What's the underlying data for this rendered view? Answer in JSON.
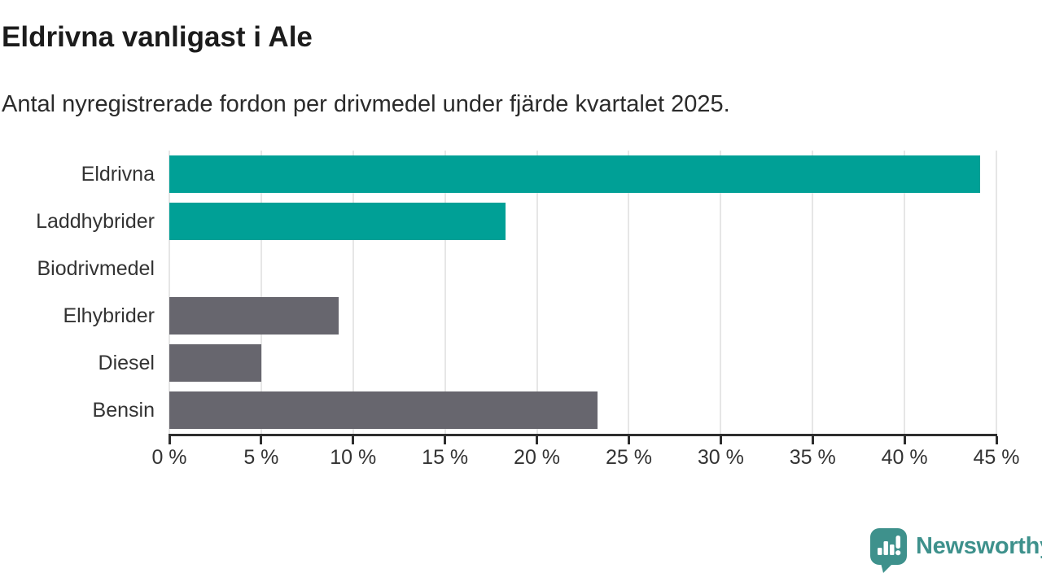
{
  "header": {
    "title": "Eldrivna vanligast i Ale",
    "subtitle": "Antal nyregistrerade fordon per drivmedel under fjärde kvartalet 2025."
  },
  "chart_data": {
    "type": "bar",
    "orientation": "horizontal",
    "title": "Eldrivna vanligast i Ale",
    "subtitle": "Antal nyregistrerade fordon per drivmedel under fjärde kvartalet 2025.",
    "categories": [
      "Eldrivna",
      "Laddhybrider",
      "Biodrivmedel",
      "Elhybrider",
      "Diesel",
      "Bensin"
    ],
    "values": [
      44.1,
      18.3,
      0,
      9.2,
      5.0,
      23.3
    ],
    "unit": "%",
    "bar_colors": [
      "#00a096",
      "#00a096",
      "#00a096",
      "#67666e",
      "#67666e",
      "#67666e"
    ],
    "xlim": [
      0,
      45
    ],
    "x_ticks": [
      0,
      5,
      10,
      15,
      20,
      25,
      30,
      35,
      40,
      45
    ],
    "x_tick_labels": [
      "0 %",
      "5 %",
      "10 %",
      "15 %",
      "20 %",
      "25 %",
      "30 %",
      "35 %",
      "40 %",
      "45 %"
    ],
    "grid": "vertical",
    "legend": "none",
    "xlabel": "",
    "ylabel": ""
  },
  "colors": {
    "teal": "#00a096",
    "gray": "#67666e",
    "gridline": "#e6e6e6",
    "axis": "#2e2e2e",
    "label_text": "#333333",
    "title_text": "#1c1c1c",
    "logo_teal": "#3e918c"
  },
  "logo": {
    "text": "Newsworthy",
    "icon": "newsworthy-speech-bubble-barchart-icon"
  }
}
